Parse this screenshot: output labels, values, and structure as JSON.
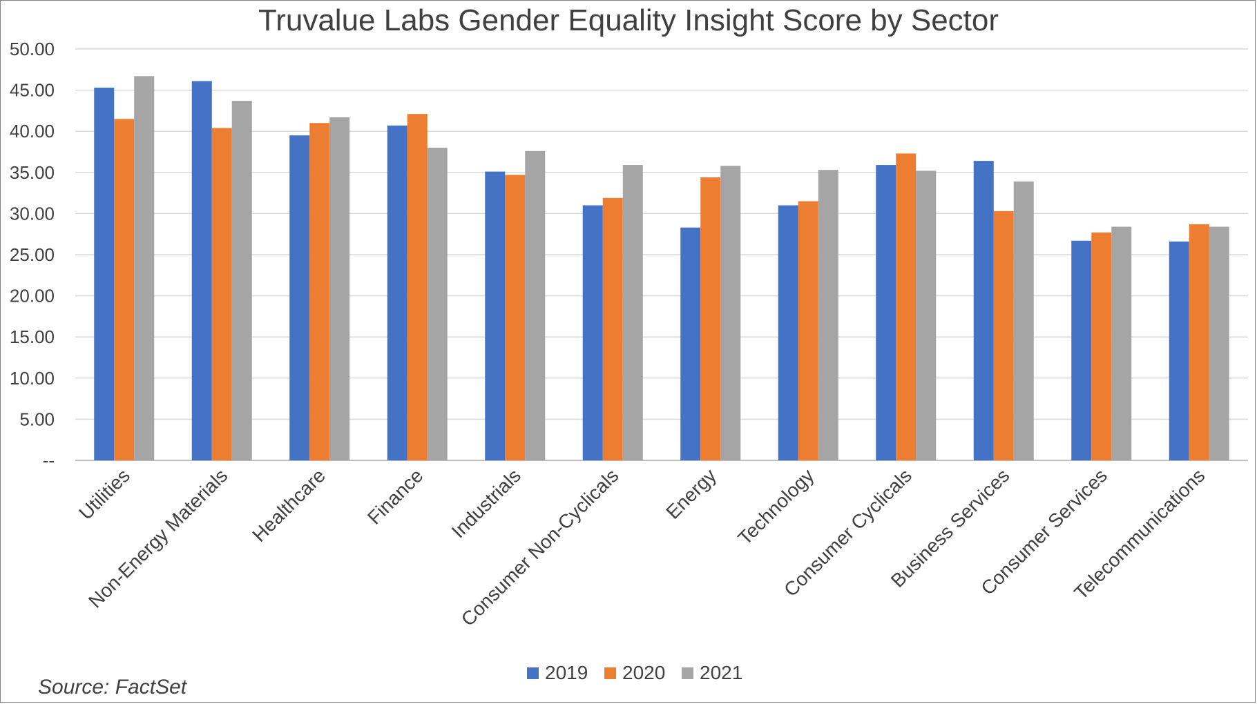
{
  "chart_data": {
    "type": "bar",
    "title": "Truvalue Labs Gender Equality Insight Score by Sector",
    "categories": [
      "Utilities",
      "Non-Energy Materials",
      "Healthcare",
      "Finance",
      "Industrials",
      "Consumer Non-Cyclicals",
      "Energy",
      "Technology",
      "Consumer Cyclicals",
      "Business Services",
      "Consumer Services",
      "Telecommunications"
    ],
    "series": [
      {
        "name": "2019",
        "color": "#4472c4",
        "values": [
          45.3,
          46.1,
          39.5,
          40.7,
          35.1,
          31.0,
          28.3,
          31.0,
          35.9,
          36.4,
          26.7,
          26.6
        ]
      },
      {
        "name": "2020",
        "color": "#ed7d31",
        "values": [
          41.5,
          40.4,
          41.0,
          42.1,
          34.7,
          31.9,
          34.4,
          31.5,
          37.3,
          30.3,
          27.7,
          28.7
        ]
      },
      {
        "name": "2021",
        "color": "#a5a5a5",
        "values": [
          46.7,
          43.7,
          41.7,
          38.0,
          37.6,
          35.9,
          35.8,
          35.3,
          35.2,
          33.9,
          28.4,
          28.4
        ]
      }
    ],
    "yticks": [
      "--",
      "5.00",
      "10.00",
      "15.00",
      "20.00",
      "25.00",
      "30.00",
      "35.00",
      "40.00",
      "45.00",
      "50.00"
    ],
    "ylim": [
      0,
      50
    ],
    "grid": true,
    "legend": "bottom",
    "source": "Source: FactSet"
  }
}
